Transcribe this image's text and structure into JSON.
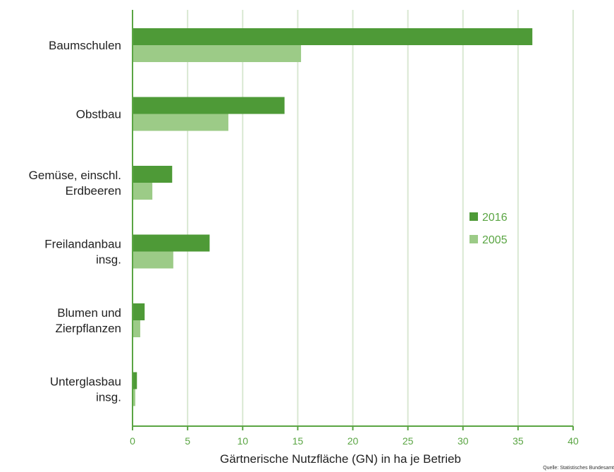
{
  "chart_data": {
    "type": "bar",
    "orientation": "horizontal",
    "categories": [
      [
        "Baumschulen"
      ],
      [
        "Obstbau"
      ],
      [
        "Gemüse, einschl.",
        "Erdbeeren"
      ],
      [
        "Freilandanbau",
        "insg."
      ],
      [
        "Blumen und",
        "Zierpflanzen"
      ],
      [
        "Unterglasbau",
        "insg."
      ]
    ],
    "series": [
      {
        "name": "2016",
        "color": "#4e9a37",
        "values": [
          36.3,
          13.8,
          3.6,
          7.0,
          1.1,
          0.4
        ]
      },
      {
        "name": "2005",
        "color": "#9ccb87",
        "values": [
          15.3,
          8.7,
          1.8,
          3.7,
          0.7,
          0.25
        ]
      }
    ],
    "xlabel": "Gärtnerische Nutzfläche (GN) in ha je Betrieb",
    "ylabel": "",
    "title": "",
    "xlim": [
      0,
      40
    ],
    "xticks": [
      0,
      5,
      10,
      15,
      20,
      25,
      30,
      35,
      40
    ],
    "grid": "vertical",
    "legend_position": "right",
    "source": "Quelle: Statistisches Bundesamt",
    "axis_color": "#5aa543",
    "grid_color": "#d9e8d2"
  }
}
